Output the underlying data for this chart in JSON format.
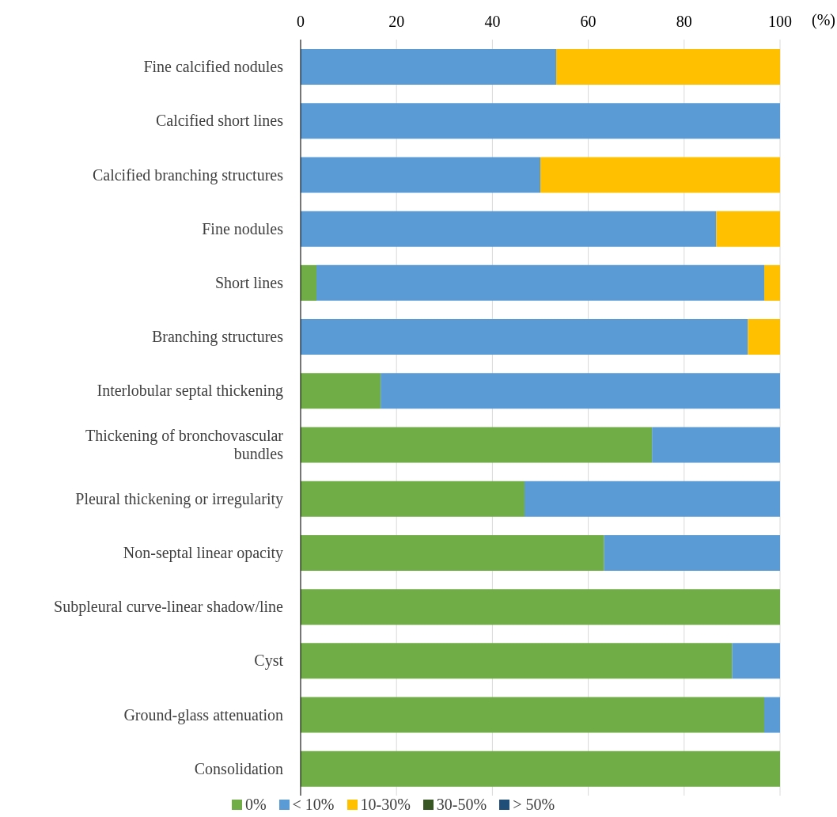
{
  "chart_data": {
    "type": "bar",
    "orientation": "horizontal",
    "stacked": true,
    "xlabel": "(%)",
    "categories": [
      "Fine calcified nodules",
      "Calcified short lines",
      "Calcified branching structures",
      "Fine nodules",
      "Short lines",
      "Branching structures",
      "Interlobular septal thickening",
      "Thickening of bronchovascular bundles",
      "Pleural thickening or irregularity",
      "Non-septal linear opacity",
      "Subpleural curve-linear shadow/line",
      "Cyst",
      "Ground-glass attenuation",
      "Consolidation"
    ],
    "series": [
      {
        "name": "0%",
        "color": "#70ad47",
        "values": [
          0,
          0,
          0,
          0,
          3.3,
          0,
          16.7,
          73.3,
          46.7,
          63.3,
          100,
          90,
          96.7,
          100
        ]
      },
      {
        "name": "< 10%",
        "color": "#5b9bd5",
        "values": [
          53.3,
          100,
          50,
          86.7,
          93.4,
          93.3,
          83.3,
          26.7,
          53.3,
          36.7,
          0,
          10,
          3.3,
          0
        ]
      },
      {
        "name": "10-30%",
        "color": "#ffc000",
        "values": [
          46.7,
          0,
          50,
          13.3,
          3.3,
          6.7,
          0,
          0,
          0,
          0,
          0,
          0,
          0,
          0
        ]
      },
      {
        "name": "30-50%",
        "color": "#375623",
        "values": [
          0,
          0,
          0,
          0,
          0,
          0,
          0,
          0,
          0,
          0,
          0,
          0,
          0,
          0
        ]
      },
      {
        "name": "> 50%",
        "color": "#1f4e79",
        "values": [
          0,
          0,
          0,
          0,
          0,
          0,
          0,
          0,
          0,
          0,
          0,
          0,
          0,
          0
        ]
      }
    ],
    "xlim": [
      0,
      100
    ],
    "xticks": [
      0,
      20,
      40,
      60,
      80,
      100
    ],
    "grid": "x",
    "legend": "bottom"
  }
}
